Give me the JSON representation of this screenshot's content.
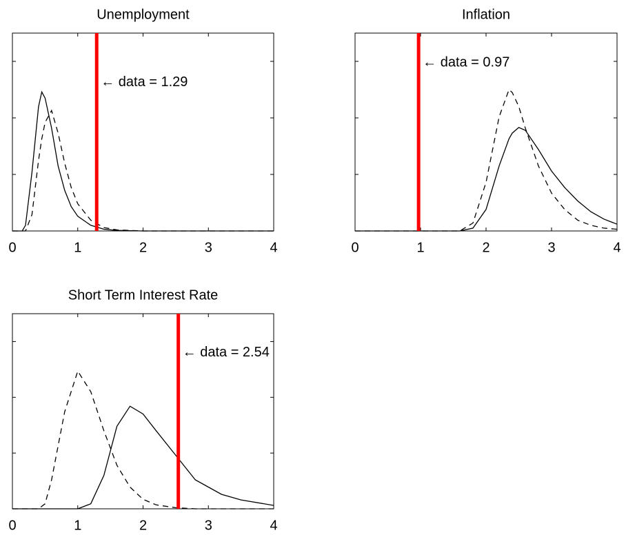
{
  "chart_data": [
    {
      "type": "line",
      "title": "Unemployment",
      "x": [
        0,
        0.15,
        0.2,
        0.3,
        0.4,
        0.45,
        0.5,
        0.6,
        0.7,
        0.8,
        0.9,
        1.0,
        1.2,
        1.4,
        1.6,
        2,
        3,
        4
      ],
      "series": [
        {
          "color": "#000000",
          "dash": "solid",
          "values": [
            0,
            0,
            0.1,
            1.04,
            2.2,
            2.46,
            2.35,
            1.82,
            1.15,
            0.72,
            0.43,
            0.26,
            0.1,
            0.03,
            0.01,
            0,
            0,
            0
          ]
        },
        {
          "color": "#000000",
          "dash": "dashed",
          "values": [
            0,
            0,
            0,
            0.29,
            1.25,
            1.63,
            1.92,
            2.13,
            1.73,
            1.2,
            0.77,
            0.48,
            0.19,
            0.06,
            0.02,
            0,
            0,
            0
          ]
        }
      ],
      "vline": 1.29,
      "vline_color": "#ff0000",
      "annotation": "← data = 1.29",
      "xlim": [
        0,
        4
      ],
      "xticks": [
        0,
        1,
        2,
        3,
        4
      ],
      "ylim": [
        0,
        3.5
      ],
      "yticks": [
        0,
        1,
        2,
        3
      ]
    },
    {
      "type": "line",
      "title": "Inflation",
      "x": [
        0,
        1.5,
        1.6,
        1.8,
        2.0,
        2.2,
        2.35,
        2.4,
        2.5,
        2.6,
        2.8,
        3.0,
        3.2,
        3.4,
        3.6,
        3.8,
        4.0
      ],
      "series": [
        {
          "color": "#000000",
          "dash": "solid",
          "values": [
            0,
            0,
            0,
            0.05,
            0.38,
            1.15,
            1.63,
            1.73,
            1.83,
            1.78,
            1.44,
            1.06,
            0.77,
            0.53,
            0.34,
            0.21,
            0.12
          ]
        },
        {
          "color": "#000000",
          "dash": "dashed",
          "values": [
            0,
            0,
            0,
            0.14,
            0.86,
            2.02,
            2.5,
            2.45,
            2.2,
            1.82,
            1.15,
            0.67,
            0.38,
            0.19,
            0.1,
            0.05,
            0.03
          ]
        }
      ],
      "vline": 0.97,
      "vline_color": "#ff0000",
      "annotation": "← data = 0.97",
      "xlim": [
        0,
        4
      ],
      "xticks": [
        0,
        1,
        2,
        3,
        4
      ],
      "ylim": [
        0,
        3.5
      ],
      "yticks": [
        0,
        1,
        2,
        3
      ]
    },
    {
      "type": "line",
      "title": "Short Term Interest Rate",
      "x": [
        0,
        0.4,
        0.5,
        0.6,
        0.8,
        1.0,
        1.2,
        1.4,
        1.6,
        1.8,
        2.0,
        2.2,
        2.5,
        2.8,
        3.0,
        3.2,
        3.5,
        4.0
      ],
      "series": [
        {
          "color": "#000000",
          "dash": "solid",
          "values": [
            0,
            0,
            0,
            0,
            0,
            0,
            0.09,
            0.6,
            1.48,
            1.84,
            1.7,
            1.4,
            0.96,
            0.52,
            0.39,
            0.26,
            0.16,
            0.06
          ]
        },
        {
          "color": "#000000",
          "dash": "dashed",
          "values": [
            0,
            0,
            0.09,
            0.52,
            1.74,
            2.47,
            2.1,
            1.4,
            0.78,
            0.39,
            0.17,
            0.07,
            0.02,
            0,
            0,
            0,
            0,
            0
          ]
        }
      ],
      "vline": 2.54,
      "vline_color": "#ff0000",
      "annotation": "← data = 2.54",
      "xlim": [
        0,
        4
      ],
      "xticks": [
        0,
        1,
        2,
        3,
        4
      ],
      "ylim": [
        0,
        3.5
      ],
      "yticks": [
        0,
        1,
        2,
        3
      ]
    }
  ]
}
